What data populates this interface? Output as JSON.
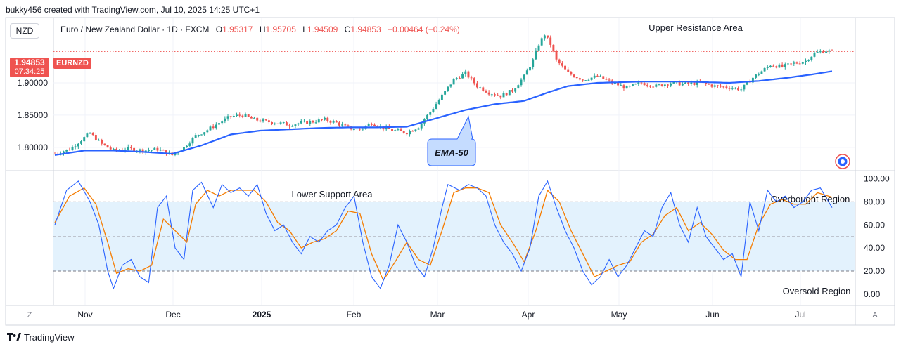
{
  "header": {
    "attribution": "bukky456 created with TradingView.com, Jul 10, 2025 14:25 UTC+1"
  },
  "instrument": {
    "currency_badge": "NZD",
    "name": "Euro / New Zealand Dollar · 1D · FXCM",
    "o_label": "O",
    "o_value": "1.95317",
    "h_label": "H",
    "h_value": "1.95705",
    "l_label": "L",
    "l_value": "1.94509",
    "c_label": "C",
    "c_value": "1.94853",
    "change": "−0.00464 (−0.24%)"
  },
  "price_tag": {
    "price": "1.94853",
    "countdown": "07:34:25",
    "symbol": "EURNZD"
  },
  "footer": {
    "brand": "TradingView",
    "z_button": "Z",
    "a_button": "A"
  },
  "colors": {
    "up": "#26a69a",
    "down": "#ef5350",
    "ema": "#2962ff",
    "stoch_k": "#2962ff",
    "stoch_d": "#f57c00",
    "band": "#e3f2fd",
    "callout": "#c5dcff"
  },
  "chart_data": [
    {
      "type": "candlestick",
      "x_tick_labels": [
        "Nov",
        "Dec",
        "2025",
        "Feb",
        "Mar",
        "Apr",
        "May",
        "Jun",
        "Jul"
      ],
      "y_ticks": [
        1.8,
        1.85,
        1.9
      ],
      "y_tick_labels": [
        "1.80000",
        "1.85000",
        "1.90000"
      ],
      "ylim": [
        1.765,
        1.998
      ],
      "last_price_line": 1.94853,
      "annotations": {
        "upper": "Upper Resistance Area",
        "ema_callout": "EMA-50"
      },
      "anchors": [
        [
          0,
          1.79
        ],
        [
          5,
          1.797
        ],
        [
          10,
          1.815
        ],
        [
          12,
          1.822
        ],
        [
          16,
          1.805
        ],
        [
          20,
          1.795
        ],
        [
          25,
          1.798
        ],
        [
          30,
          1.795
        ],
        [
          35,
          1.797
        ],
        [
          40,
          1.788
        ],
        [
          44,
          1.8
        ],
        [
          48,
          1.818
        ],
        [
          52,
          1.827
        ],
        [
          56,
          1.838
        ],
        [
          60,
          1.848
        ],
        [
          64,
          1.85
        ],
        [
          68,
          1.843
        ],
        [
          72,
          1.84
        ],
        [
          76,
          1.838
        ],
        [
          80,
          1.835
        ],
        [
          84,
          1.838
        ],
        [
          88,
          1.84
        ],
        [
          92,
          1.843
        ],
        [
          96,
          1.838
        ],
        [
          100,
          1.83
        ],
        [
          104,
          1.828
        ],
        [
          108,
          1.838
        ],
        [
          112,
          1.83
        ],
        [
          116,
          1.826
        ],
        [
          120,
          1.823
        ],
        [
          124,
          1.832
        ],
        [
          128,
          1.855
        ],
        [
          132,
          1.88
        ],
        [
          136,
          1.905
        ],
        [
          140,
          1.915
        ],
        [
          144,
          1.895
        ],
        [
          148,
          1.885
        ],
        [
          152,
          1.88
        ],
        [
          156,
          1.888
        ],
        [
          160,
          1.91
        ],
        [
          163,
          1.935
        ],
        [
          165,
          1.96
        ],
        [
          167,
          1.975
        ],
        [
          169,
          1.96
        ],
        [
          171,
          1.935
        ],
        [
          175,
          1.915
        ],
        [
          180,
          1.905
        ],
        [
          185,
          1.91
        ],
        [
          190,
          1.9
        ],
        [
          195,
          1.892
        ],
        [
          200,
          1.9
        ],
        [
          205,
          1.895
        ],
        [
          210,
          1.9
        ],
        [
          215,
          1.898
        ],
        [
          220,
          1.9
        ],
        [
          225,
          1.895
        ],
        [
          230,
          1.893
        ],
        [
          234,
          1.89
        ],
        [
          238,
          1.908
        ],
        [
          241,
          1.918
        ],
        [
          244,
          1.928
        ],
        [
          248,
          1.925
        ],
        [
          252,
          1.93
        ],
        [
          256,
          1.934
        ],
        [
          259,
          1.946
        ],
        [
          263,
          1.95
        ],
        [
          265,
          1.948
        ]
      ],
      "ema_anchors": [
        [
          0,
          1.788
        ],
        [
          10,
          1.795
        ],
        [
          20,
          1.795
        ],
        [
          30,
          1.793
        ],
        [
          40,
          1.79
        ],
        [
          50,
          1.803
        ],
        [
          60,
          1.82
        ],
        [
          70,
          1.826
        ],
        [
          80,
          1.828
        ],
        [
          90,
          1.83
        ],
        [
          100,
          1.831
        ],
        [
          110,
          1.831
        ],
        [
          120,
          1.832
        ],
        [
          130,
          1.845
        ],
        [
          140,
          1.858
        ],
        [
          150,
          1.867
        ],
        [
          160,
          1.872
        ],
        [
          168,
          1.885
        ],
        [
          175,
          1.895
        ],
        [
          185,
          1.9
        ],
        [
          200,
          1.902
        ],
        [
          215,
          1.902
        ],
        [
          230,
          1.9
        ],
        [
          240,
          1.903
        ],
        [
          250,
          1.908
        ],
        [
          258,
          1.913
        ],
        [
          265,
          1.918
        ]
      ]
    },
    {
      "type": "line",
      "indicator": "stochastic",
      "ylim": [
        -8,
        104
      ],
      "y_ticks": [
        0,
        20,
        40,
        60,
        80,
        100
      ],
      "y_tick_labels": [
        "0.00",
        "20.00",
        "40.00",
        "60.00",
        "80.00",
        "100.00"
      ],
      "band": [
        20,
        80
      ],
      "midline": 50,
      "annotations": {
        "lower": "Lower Support Area",
        "overbought": "Overbought Region",
        "oversold": "Oversold Region"
      },
      "k_anchors": [
        [
          0,
          60
        ],
        [
          4,
          90
        ],
        [
          8,
          98
        ],
        [
          12,
          80
        ],
        [
          15,
          60
        ],
        [
          18,
          20
        ],
        [
          20,
          5
        ],
        [
          23,
          25
        ],
        [
          26,
          30
        ],
        [
          29,
          15
        ],
        [
          32,
          10
        ],
        [
          35,
          75
        ],
        [
          38,
          85
        ],
        [
          41,
          40
        ],
        [
          44,
          30
        ],
        [
          47,
          90
        ],
        [
          50,
          97
        ],
        [
          54,
          75
        ],
        [
          57,
          95
        ],
        [
          60,
          88
        ],
        [
          63,
          92
        ],
        [
          66,
          85
        ],
        [
          69,
          95
        ],
        [
          72,
          70
        ],
        [
          75,
          55
        ],
        [
          78,
          60
        ],
        [
          81,
          45
        ],
        [
          84,
          35
        ],
        [
          87,
          50
        ],
        [
          90,
          45
        ],
        [
          93,
          55
        ],
        [
          96,
          60
        ],
        [
          99,
          75
        ],
        [
          102,
          85
        ],
        [
          105,
          45
        ],
        [
          108,
          15
        ],
        [
          111,
          5
        ],
        [
          114,
          25
        ],
        [
          117,
          60
        ],
        [
          120,
          45
        ],
        [
          123,
          25
        ],
        [
          126,
          15
        ],
        [
          129,
          40
        ],
        [
          132,
          75
        ],
        [
          134,
          95
        ],
        [
          138,
          90
        ],
        [
          141,
          95
        ],
        [
          144,
          92
        ],
        [
          147,
          85
        ],
        [
          150,
          60
        ],
        [
          153,
          45
        ],
        [
          156,
          35
        ],
        [
          159,
          20
        ],
        [
          162,
          40
        ],
        [
          165,
          85
        ],
        [
          168,
          98
        ],
        [
          171,
          75
        ],
        [
          174,
          55
        ],
        [
          177,
          40
        ],
        [
          180,
          20
        ],
        [
          183,
          8
        ],
        [
          186,
          15
        ],
        [
          189,
          30
        ],
        [
          192,
          15
        ],
        [
          195,
          25
        ],
        [
          198,
          40
        ],
        [
          201,
          55
        ],
        [
          204,
          50
        ],
        [
          207,
          75
        ],
        [
          210,
          88
        ],
        [
          213,
          60
        ],
        [
          216,
          45
        ],
        [
          219,
          75
        ],
        [
          222,
          50
        ],
        [
          225,
          40
        ],
        [
          228,
          30
        ],
        [
          231,
          35
        ],
        [
          234,
          15
        ],
        [
          237,
          80
        ],
        [
          240,
          55
        ],
        [
          243,
          90
        ],
        [
          246,
          80
        ],
        [
          249,
          85
        ],
        [
          252,
          75
        ],
        [
          255,
          80
        ],
        [
          258,
          90
        ],
        [
          261,
          92
        ],
        [
          265,
          75
        ]
      ],
      "d_anchors": [
        [
          0,
          62
        ],
        [
          5,
          85
        ],
        [
          10,
          92
        ],
        [
          14,
          78
        ],
        [
          18,
          45
        ],
        [
          21,
          18
        ],
        [
          25,
          22
        ],
        [
          29,
          20
        ],
        [
          33,
          25
        ],
        [
          37,
          65
        ],
        [
          41,
          55
        ],
        [
          45,
          45
        ],
        [
          48,
          78
        ],
        [
          52,
          90
        ],
        [
          56,
          85
        ],
        [
          60,
          90
        ],
        [
          64,
          90
        ],
        [
          68,
          90
        ],
        [
          72,
          80
        ],
        [
          76,
          62
        ],
        [
          80,
          55
        ],
        [
          84,
          40
        ],
        [
          88,
          45
        ],
        [
          92,
          48
        ],
        [
          96,
          55
        ],
        [
          100,
          72
        ],
        [
          104,
          70
        ],
        [
          108,
          35
        ],
        [
          112,
          12
        ],
        [
          116,
          28
        ],
        [
          120,
          45
        ],
        [
          124,
          30
        ],
        [
          128,
          25
        ],
        [
          132,
          55
        ],
        [
          136,
          88
        ],
        [
          140,
          92
        ],
        [
          144,
          92
        ],
        [
          148,
          88
        ],
        [
          152,
          60
        ],
        [
          156,
          45
        ],
        [
          160,
          28
        ],
        [
          164,
          55
        ],
        [
          168,
          90
        ],
        [
          172,
          80
        ],
        [
          176,
          55
        ],
        [
          180,
          35
        ],
        [
          184,
          15
        ],
        [
          188,
          20
        ],
        [
          192,
          25
        ],
        [
          196,
          28
        ],
        [
          200,
          45
        ],
        [
          204,
          52
        ],
        [
          208,
          68
        ],
        [
          212,
          75
        ],
        [
          216,
          55
        ],
        [
          220,
          62
        ],
        [
          224,
          52
        ],
        [
          228,
          38
        ],
        [
          232,
          30
        ],
        [
          236,
          30
        ],
        [
          240,
          60
        ],
        [
          244,
          78
        ],
        [
          248,
          82
        ],
        [
          252,
          78
        ],
        [
          256,
          78
        ],
        [
          260,
          88
        ],
        [
          265,
          84
        ]
      ]
    }
  ]
}
